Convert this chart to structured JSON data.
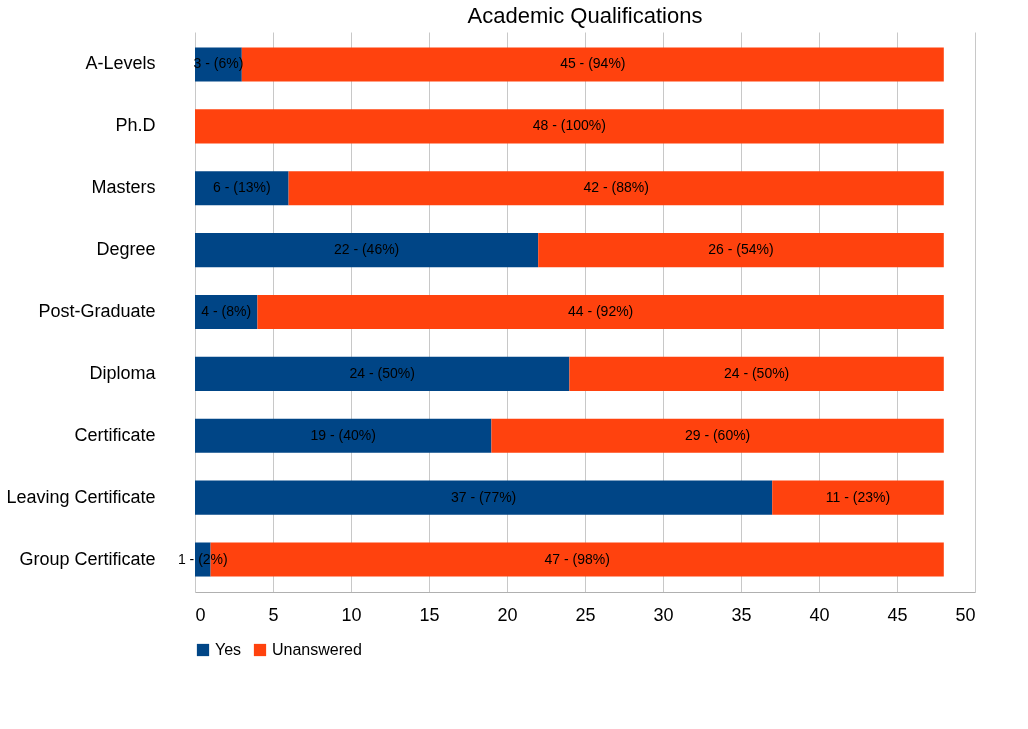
{
  "chart_data": {
    "type": "bar",
    "title": "Academic Qualifications",
    "orientation": "horizontal",
    "stacked": true,
    "categories": [
      "A-Levels",
      "Ph.D",
      "Masters",
      "Degree",
      "Post-Graduate",
      "Diploma",
      "Certificate",
      "Leaving Certificate",
      "Group Certificate"
    ],
    "series": [
      {
        "name": "Yes",
        "color": "#004586",
        "values": [
          3,
          0,
          6,
          22,
          4,
          24,
          19,
          37,
          1
        ],
        "value_labels": [
          "3 - (6%)",
          null,
          "6 - (13%)",
          "22 - (46%)",
          "4 - (8%)",
          "24 - (50%)",
          "19 - (40%)",
          "37 - (77%)",
          "1 - (2%)"
        ]
      },
      {
        "name": "Unanswered",
        "color": "#ff420e",
        "values": [
          45,
          48,
          42,
          26,
          44,
          24,
          29,
          11,
          47
        ],
        "value_labels": [
          "45 - (94%)",
          "48 - (100%)",
          "42 - (88%)",
          "26 - (54%)",
          "44 - (92%)",
          "24 - (50%)",
          "29 - (60%)",
          "11 - (23%)",
          "47 - (98%)"
        ]
      }
    ],
    "xlim": [
      0,
      50
    ],
    "xticks": [
      0,
      5,
      10,
      15,
      20,
      25,
      30,
      35,
      40,
      45,
      50
    ],
    "grid": "x",
    "legend": "bottom"
  }
}
